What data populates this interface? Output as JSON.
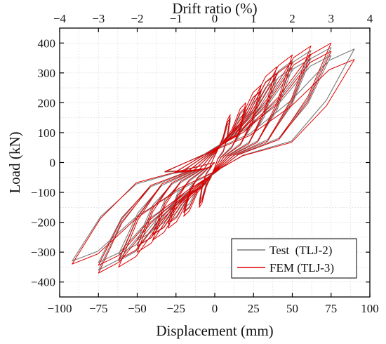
{
  "chart_data": {
    "type": "line",
    "title": "",
    "xlabel": "Displacement (mm)",
    "x2label": "Drift ratio (%)",
    "ylabel": "Load (kN)",
    "xlim": [
      -100,
      100
    ],
    "x2lim": [
      -4,
      4
    ],
    "ylim": [
      -450,
      450
    ],
    "xticks": [
      -100,
      -75,
      -50,
      -25,
      0,
      25,
      50,
      75,
      100
    ],
    "x2ticks": [
      -4,
      -3,
      -2,
      -1,
      0,
      1,
      2,
      3,
      4
    ],
    "yticks": [
      -400,
      -300,
      -200,
      -100,
      0,
      100,
      200,
      300,
      400
    ],
    "xtick_labels": [
      "−100",
      "−75",
      "−50",
      "−25",
      "0",
      "25",
      "50",
      "75",
      "100"
    ],
    "x2tick_labels": [
      "−4",
      "−3",
      "−2",
      "−1",
      "0",
      "1",
      "2",
      "3",
      "4"
    ],
    "ytick_labels": [
      "−400",
      "−300",
      "−200",
      "−100",
      "0",
      "100",
      "200",
      "300",
      "400"
    ],
    "grid": true,
    "legend_position": "bottom-right",
    "series": [
      {
        "name": "Test  (TLJ-2)",
        "color": "#7a7a7a",
        "style": "hysteresis",
        "cycles": [
          {
            "amp_pos": 10,
            "peak_pos": 150,
            "amp_neg": -10,
            "peak_neg": -140,
            "residual": 45,
            "repeat": 2
          },
          {
            "amp_pos": 20,
            "peak_pos": 180,
            "amp_neg": -20,
            "peak_neg": -165,
            "residual": 60,
            "repeat": 2
          },
          {
            "amp_pos": 30,
            "peak_pos": 240,
            "amp_neg": -30,
            "peak_neg": -200,
            "residual": 70,
            "repeat": 2
          },
          {
            "amp_pos": 40,
            "peak_pos": 300,
            "amp_neg": -40,
            "peak_neg": -240,
            "residual": 75,
            "repeat": 2
          },
          {
            "amp_pos": 50,
            "peak_pos": 340,
            "amp_neg": -50,
            "peak_neg": -280,
            "residual": 80,
            "repeat": 2
          },
          {
            "amp_pos": 62,
            "peak_pos": 375,
            "amp_neg": -62,
            "peak_neg": -330,
            "residual": 85,
            "repeat": 2
          },
          {
            "amp_pos": 75,
            "peak_pos": 385,
            "amp_neg": -75,
            "peak_neg": -360,
            "residual": 90,
            "repeat": 2
          },
          {
            "amp_pos": 90,
            "peak_pos": 380,
            "amp_neg": -92,
            "peak_neg": -330,
            "residual": 80,
            "repeat": 1
          }
        ]
      },
      {
        "name": "FEM (TLJ-3)",
        "color": "#e00000",
        "style": "hysteresis",
        "cycles": [
          {
            "amp_pos": 10,
            "peak_pos": 160,
            "amp_neg": -10,
            "peak_neg": -150,
            "residual": 40,
            "repeat": 2
          },
          {
            "amp_pos": 20,
            "peak_pos": 200,
            "amp_neg": -20,
            "peak_neg": -180,
            "residual": 55,
            "repeat": 2
          },
          {
            "amp_pos": 30,
            "peak_pos": 260,
            "amp_neg": -30,
            "peak_neg": -220,
            "residual": 65,
            "repeat": 2
          },
          {
            "amp_pos": 40,
            "peak_pos": 320,
            "amp_neg": -40,
            "peak_neg": -260,
            "residual": 70,
            "repeat": 2
          },
          {
            "amp_pos": 50,
            "peak_pos": 360,
            "amp_neg": -50,
            "peak_neg": -300,
            "residual": 75,
            "repeat": 2
          },
          {
            "amp_pos": 62,
            "peak_pos": 390,
            "amp_neg": -62,
            "peak_neg": -350,
            "residual": 80,
            "repeat": 2
          },
          {
            "amp_pos": 75,
            "peak_pos": 400,
            "amp_neg": -75,
            "peak_neg": -370,
            "residual": 85,
            "repeat": 2
          },
          {
            "amp_pos": 90,
            "peak_pos": 345,
            "amp_neg": -92,
            "peak_neg": -340,
            "residual": 75,
            "repeat": 1
          }
        ]
      }
    ]
  }
}
